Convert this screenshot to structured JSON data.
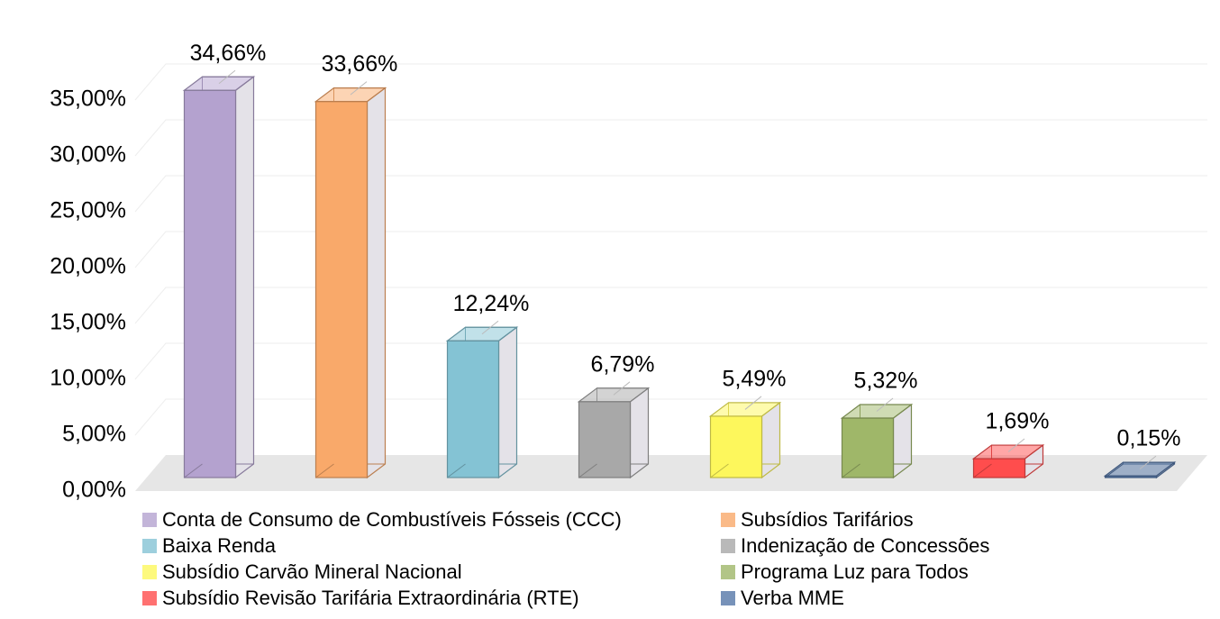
{
  "chart_data": {
    "type": "bar3d",
    "categories": [
      "Conta de Consumo de Combustíveis Fósseis (CCC)",
      "Subsídios Tarifários",
      "Baixa Renda",
      "Indenização de Concessões",
      "Subsídio Carvão Mineral Nacional",
      "Programa Luz para Todos",
      "Subsídio Revisão Tarifária Extraordinária (RTE)",
      "Verba MME"
    ],
    "values": [
      34.66,
      33.66,
      12.24,
      6.79,
      5.49,
      5.32,
      1.69,
      0.15
    ],
    "value_labels": [
      "34,66%",
      "33,66%",
      "12,24%",
      "6,79%",
      "5,49%",
      "5,32%",
      "1,69%",
      "0,15%"
    ],
    "colors": [
      "#b4a2cf",
      "#f9a96a",
      "#84c3d4",
      "#a8a8a8",
      "#fdf75c",
      "#9fb769",
      "#ff4d4d",
      "#5577a8"
    ],
    "ylim": [
      0,
      37.5
    ],
    "yticks": [
      {
        "value": 0,
        "label": "0,00%"
      },
      {
        "value": 5,
        "label": "5,00%"
      },
      {
        "value": 10,
        "label": "10,00%"
      },
      {
        "value": 15,
        "label": "15,00%"
      },
      {
        "value": 20,
        "label": "20,00%"
      },
      {
        "value": 25,
        "label": "25,00%"
      },
      {
        "value": 30,
        "label": "30,00%"
      },
      {
        "value": 35,
        "label": "35,00%"
      }
    ],
    "grid": true,
    "legend": "bottom"
  }
}
